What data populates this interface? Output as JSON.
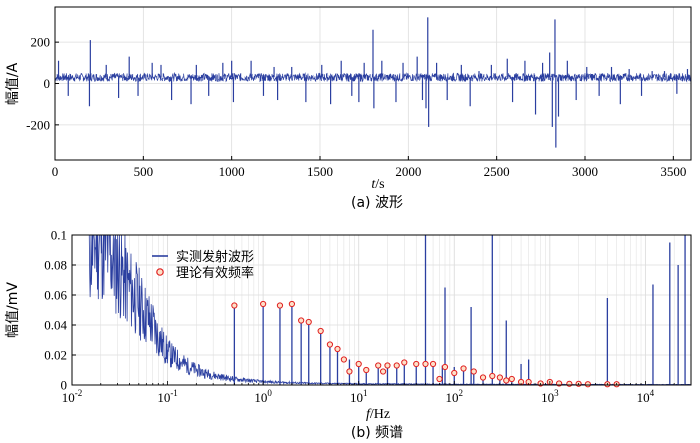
{
  "colors": {
    "signal": "#2b3fa0",
    "marker_edge": "#e02020",
    "marker_fill": "#fde0c8",
    "grid": "#dddddd"
  },
  "chart_data": [
    {
      "type": "line",
      "panel_caption": "(a) 波形",
      "xlabel_var": "t",
      "xlabel_unit": "/s",
      "ylabel": "幅值/A",
      "xlim": [
        0,
        3600
      ],
      "ylim": [
        -370,
        370
      ],
      "xticks": [
        0,
        500,
        1000,
        1500,
        2000,
        2500,
        3000,
        3500
      ],
      "yticks": [
        -200,
        0,
        200
      ],
      "grid": true,
      "baseline": 30,
      "noise_amplitude": 20,
      "spikes": [
        {
          "x": 20,
          "y": 110
        },
        {
          "x": 75,
          "y": -60
        },
        {
          "x": 200,
          "y": 210
        },
        {
          "x": 195,
          "y": -110
        },
        {
          "x": 290,
          "y": 90
        },
        {
          "x": 360,
          "y": -70
        },
        {
          "x": 420,
          "y": 130
        },
        {
          "x": 470,
          "y": -60
        },
        {
          "x": 550,
          "y": 100
        },
        {
          "x": 600,
          "y": 90
        },
        {
          "x": 660,
          "y": -80
        },
        {
          "x": 770,
          "y": -100
        },
        {
          "x": 800,
          "y": 90
        },
        {
          "x": 870,
          "y": -60
        },
        {
          "x": 950,
          "y": 100
        },
        {
          "x": 1000,
          "y": 110
        },
        {
          "x": 1010,
          "y": -90
        },
        {
          "x": 1110,
          "y": 110
        },
        {
          "x": 1180,
          "y": -60
        },
        {
          "x": 1240,
          "y": 80
        },
        {
          "x": 1260,
          "y": -80
        },
        {
          "x": 1340,
          "y": 80
        },
        {
          "x": 1420,
          "y": -90
        },
        {
          "x": 1510,
          "y": 90
        },
        {
          "x": 1560,
          "y": -100
        },
        {
          "x": 1620,
          "y": 110
        },
        {
          "x": 1680,
          "y": -60
        },
        {
          "x": 1720,
          "y": -90
        },
        {
          "x": 1750,
          "y": 100
        },
        {
          "x": 1800,
          "y": 260
        },
        {
          "x": 1805,
          "y": -120
        },
        {
          "x": 1850,
          "y": 110
        },
        {
          "x": 1930,
          "y": -90
        },
        {
          "x": 1970,
          "y": 100
        },
        {
          "x": 2050,
          "y": 130
        },
        {
          "x": 2080,
          "y": -80
        },
        {
          "x": 2100,
          "y": -120
        },
        {
          "x": 2110,
          "y": 320
        },
        {
          "x": 2115,
          "y": -210
        },
        {
          "x": 2160,
          "y": 100
        },
        {
          "x": 2220,
          "y": -80
        },
        {
          "x": 2300,
          "y": 90
        },
        {
          "x": 2350,
          "y": -110
        },
        {
          "x": 2400,
          "y": 60
        },
        {
          "x": 2470,
          "y": 90
        },
        {
          "x": 2560,
          "y": 120
        },
        {
          "x": 2590,
          "y": -90
        },
        {
          "x": 2660,
          "y": 110
        },
        {
          "x": 2720,
          "y": -150
        },
        {
          "x": 2760,
          "y": 100
        },
        {
          "x": 2800,
          "y": 150
        },
        {
          "x": 2815,
          "y": -210
        },
        {
          "x": 2830,
          "y": 310
        },
        {
          "x": 2835,
          "y": -310
        },
        {
          "x": 2850,
          "y": -160
        },
        {
          "x": 2900,
          "y": 110
        },
        {
          "x": 2950,
          "y": -80
        },
        {
          "x": 3010,
          "y": 80
        },
        {
          "x": 3080,
          "y": -60
        },
        {
          "x": 3150,
          "y": 80
        },
        {
          "x": 3200,
          "y": -100
        },
        {
          "x": 3250,
          "y": 70
        },
        {
          "x": 3320,
          "y": -60
        },
        {
          "x": 3380,
          "y": 60
        },
        {
          "x": 3450,
          "y": 60
        },
        {
          "x": 3520,
          "y": -50
        },
        {
          "x": 3580,
          "y": 70
        }
      ]
    },
    {
      "type": "line",
      "panel_caption": "(b) 频谱",
      "xlabel_var": "f",
      "xlabel_unit": "/Hz",
      "ylabel": "幅值/mV",
      "xscale": "log",
      "xlim": [
        0.01,
        30000
      ],
      "ylim": [
        0,
        0.1
      ],
      "xticks": [
        {
          "base": "10",
          "exp": "-2"
        },
        {
          "base": "10",
          "exp": "-1"
        },
        {
          "base": "10",
          "exp": "0"
        },
        {
          "base": "10",
          "exp": "1"
        },
        {
          "base": "10",
          "exp": "2"
        },
        {
          "base": "10",
          "exp": "3"
        },
        {
          "base": "10",
          "exp": "4"
        }
      ],
      "yticks": [
        "0",
        "0.02",
        "0.04",
        "0.06",
        "0.08",
        "0.1"
      ],
      "grid": true,
      "legend": {
        "position": "upper-left",
        "entries": [
          {
            "label": "实测发射波形",
            "kind": "line"
          },
          {
            "label": "理论有效频率",
            "kind": "marker"
          }
        ]
      },
      "noise_floor": [
        {
          "f": 0.015,
          "a": 0.09
        },
        {
          "f": 0.02,
          "a": 0.1
        },
        {
          "f": 0.03,
          "a": 0.08
        },
        {
          "f": 0.05,
          "a": 0.055
        },
        {
          "f": 0.07,
          "a": 0.04
        },
        {
          "f": 0.1,
          "a": 0.022
        },
        {
          "f": 0.15,
          "a": 0.014
        },
        {
          "f": 0.2,
          "a": 0.01
        },
        {
          "f": 0.3,
          "a": 0.0065
        },
        {
          "f": 0.5,
          "a": 0.004
        },
        {
          "f": 1,
          "a": 0.0022
        },
        {
          "f": 3,
          "a": 0.0012
        },
        {
          "f": 10,
          "a": 0.0008
        },
        {
          "f": 100,
          "a": 0.0005
        },
        {
          "f": 30000,
          "a": 0.0003
        }
      ],
      "measured_peaks": [
        {
          "f": 0.5,
          "a": 0.053
        },
        {
          "f": 1,
          "a": 0.054
        },
        {
          "f": 1.5,
          "a": 0.053
        },
        {
          "f": 2,
          "a": 0.054
        },
        {
          "f": 2.5,
          "a": 0.043
        },
        {
          "f": 3,
          "a": 0.042
        },
        {
          "f": 4,
          "a": 0.036
        },
        {
          "f": 5,
          "a": 0.027
        },
        {
          "f": 6,
          "a": 0.024
        },
        {
          "f": 8,
          "a": 0.017
        },
        {
          "f": 10,
          "a": 0.014
        },
        {
          "f": 12,
          "a": 0.012
        },
        {
          "f": 16,
          "a": 0.013
        },
        {
          "f": 20,
          "a": 0.013
        },
        {
          "f": 25,
          "a": 0.013
        },
        {
          "f": 30,
          "a": 0.014
        },
        {
          "f": 40,
          "a": 0.013
        },
        {
          "f": 50,
          "a": 0.1
        },
        {
          "f": 60,
          "a": 0.014
        },
        {
          "f": 75,
          "a": 0.013
        },
        {
          "f": 80,
          "a": 0.065
        },
        {
          "f": 100,
          "a": 0.012
        },
        {
          "f": 125,
          "a": 0.011
        },
        {
          "f": 150,
          "a": 0.052
        },
        {
          "f": 160,
          "a": 0.009
        },
        {
          "f": 200,
          "a": 0.007
        },
        {
          "f": 250,
          "a": 0.1
        },
        {
          "f": 300,
          "a": 0.005
        },
        {
          "f": 350,
          "a": 0.043
        },
        {
          "f": 400,
          "a": 0.004
        },
        {
          "f": 500,
          "a": 0.014
        },
        {
          "f": 600,
          "a": 0.017
        },
        {
          "f": 800,
          "a": 0.002
        },
        {
          "f": 1000,
          "a": 0.002
        },
        {
          "f": 4000,
          "a": 0.058
        },
        {
          "f": 12000,
          "a": 0.067
        },
        {
          "f": 18000,
          "a": 0.095
        },
        {
          "f": 22000,
          "a": 0.08
        },
        {
          "f": 26000,
          "a": 0.1
        }
      ],
      "theoretical_frequencies": [
        {
          "f": 0.5,
          "a": 0.053
        },
        {
          "f": 1,
          "a": 0.054
        },
        {
          "f": 1.5,
          "a": 0.053
        },
        {
          "f": 2,
          "a": 0.054
        },
        {
          "f": 2.5,
          "a": 0.043
        },
        {
          "f": 3,
          "a": 0.042
        },
        {
          "f": 4,
          "a": 0.036
        },
        {
          "f": 5,
          "a": 0.027
        },
        {
          "f": 6,
          "a": 0.024
        },
        {
          "f": 7,
          "a": 0.017
        },
        {
          "f": 8,
          "a": 0.009
        },
        {
          "f": 10,
          "a": 0.014
        },
        {
          "f": 12,
          "a": 0.01
        },
        {
          "f": 16,
          "a": 0.013
        },
        {
          "f": 18,
          "a": 0.009
        },
        {
          "f": 20,
          "a": 0.013
        },
        {
          "f": 25,
          "a": 0.013
        },
        {
          "f": 30,
          "a": 0.015
        },
        {
          "f": 40,
          "a": 0.014
        },
        {
          "f": 50,
          "a": 0.014
        },
        {
          "f": 60,
          "a": 0.014
        },
        {
          "f": 70,
          "a": 0.004
        },
        {
          "f": 80,
          "a": 0.012
        },
        {
          "f": 100,
          "a": 0.008
        },
        {
          "f": 125,
          "a": 0.011
        },
        {
          "f": 160,
          "a": 0.009
        },
        {
          "f": 200,
          "a": 0.005
        },
        {
          "f": 250,
          "a": 0.006
        },
        {
          "f": 300,
          "a": 0.005
        },
        {
          "f": 350,
          "a": 0.003
        },
        {
          "f": 400,
          "a": 0.004
        },
        {
          "f": 500,
          "a": 0.002
        },
        {
          "f": 600,
          "a": 0.002
        },
        {
          "f": 800,
          "a": 0.001
        },
        {
          "f": 1000,
          "a": 0.002
        },
        {
          "f": 1250,
          "a": 0.001
        },
        {
          "f": 1600,
          "a": 0.0008
        },
        {
          "f": 2000,
          "a": 0.0008
        },
        {
          "f": 2500,
          "a": 0.0005
        },
        {
          "f": 4000,
          "a": 0.0005
        },
        {
          "f": 5000,
          "a": 0.0005
        }
      ]
    }
  ]
}
